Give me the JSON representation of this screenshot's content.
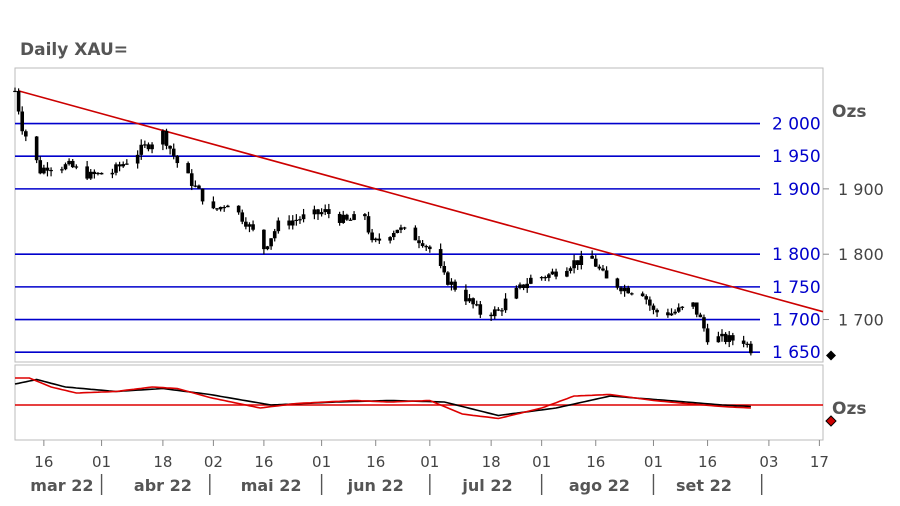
{
  "chart_data": {
    "type": "candlestick",
    "title": "Daily XAU=",
    "unit_label": "Ozs",
    "oscillator_unit_label": "Ozs",
    "colors": {
      "levels": "#0000cc",
      "trendline": "#cc0000",
      "candles": "#000000",
      "osc_fast": "#dd0000",
      "osc_slow": "#000000",
      "frame": "#bbbbbb",
      "axis_text": "#444444"
    },
    "y_range": [
      1635,
      2085
    ],
    "x_range_dates": [
      "2022-03-08",
      "2022-10-18"
    ],
    "horizontal_levels": [
      {
        "value": 2000,
        "label": "2 000"
      },
      {
        "value": 1950,
        "label": "1 950"
      },
      {
        "value": 1900,
        "label": "1 900"
      },
      {
        "value": 1800,
        "label": "1 800"
      },
      {
        "value": 1750,
        "label": "1 750"
      },
      {
        "value": 1700,
        "label": "1 700"
      },
      {
        "value": 1650,
        "label": "1 650"
      }
    ],
    "right_axis_ticks": [
      {
        "value": 1900,
        "label": "1 900"
      },
      {
        "value": 1800,
        "label": "1 800"
      },
      {
        "value": 1700,
        "label": "1 700"
      }
    ],
    "last_value_marker": 1645,
    "trendline": {
      "start": [
        "2022-03-09",
        2050
      ],
      "end": [
        "2022-10-18",
        1712
      ]
    },
    "price_keypoints": [
      [
        "2022-03-08",
        2050
      ],
      [
        "2022-03-10",
        1995
      ],
      [
        "2022-03-15",
        1928
      ],
      [
        "2022-03-17",
        1935
      ],
      [
        "2022-03-23",
        1935
      ],
      [
        "2022-03-29",
        1920
      ],
      [
        "2022-04-04",
        1926
      ],
      [
        "2022-04-12",
        1960
      ],
      [
        "2022-04-18",
        1985
      ],
      [
        "2022-04-22",
        1940
      ],
      [
        "2022-04-28",
        1895
      ],
      [
        "2022-05-02",
        1865
      ],
      [
        "2022-05-06",
        1880
      ],
      [
        "2022-05-11",
        1850
      ],
      [
        "2022-05-16",
        1810
      ],
      [
        "2022-05-20",
        1845
      ],
      [
        "2022-05-26",
        1855
      ],
      [
        "2022-06-02",
        1865
      ],
      [
        "2022-06-08",
        1850
      ],
      [
        "2022-06-13",
        1860
      ],
      [
        "2022-06-15",
        1815
      ],
      [
        "2022-06-22",
        1840
      ],
      [
        "2022-06-29",
        1820
      ],
      [
        "2022-07-01",
        1808
      ],
      [
        "2022-07-05",
        1765
      ],
      [
        "2022-07-12",
        1728
      ],
      [
        "2022-07-15",
        1710
      ],
      [
        "2022-07-20",
        1712
      ],
      [
        "2022-07-22",
        1728
      ],
      [
        "2022-07-29",
        1762
      ],
      [
        "2022-08-03",
        1768
      ],
      [
        "2022-08-10",
        1788
      ],
      [
        "2022-08-15",
        1792
      ],
      [
        "2022-08-19",
        1760
      ],
      [
        "2022-08-24",
        1748
      ],
      [
        "2022-08-29",
        1742
      ],
      [
        "2022-09-01",
        1712
      ],
      [
        "2022-09-06",
        1710
      ],
      [
        "2022-09-12",
        1722
      ],
      [
        "2022-09-14",
        1700
      ],
      [
        "2022-09-16",
        1673
      ],
      [
        "2022-09-21",
        1670
      ],
      [
        "2022-09-26",
        1668
      ],
      [
        "2022-09-28",
        1655
      ]
    ],
    "oscillator": {
      "level": "mid",
      "fast_keypoints": [
        [
          "2022-03-08",
          0.9
        ],
        [
          "2022-03-12",
          0.9
        ],
        [
          "2022-03-18",
          0.6
        ],
        [
          "2022-03-25",
          0.4
        ],
        [
          "2022-04-05",
          0.45
        ],
        [
          "2022-04-15",
          0.6
        ],
        [
          "2022-04-22",
          0.55
        ],
        [
          "2022-05-01",
          0.25
        ],
        [
          "2022-05-15",
          -0.1
        ],
        [
          "2022-05-25",
          0.05
        ],
        [
          "2022-06-10",
          0.15
        ],
        [
          "2022-06-20",
          0.1
        ],
        [
          "2022-07-01",
          0.15
        ],
        [
          "2022-07-10",
          -0.3
        ],
        [
          "2022-07-20",
          -0.45
        ],
        [
          "2022-08-01",
          -0.1
        ],
        [
          "2022-08-10",
          0.3
        ],
        [
          "2022-08-20",
          0.35
        ],
        [
          "2022-09-01",
          0.15
        ],
        [
          "2022-09-10",
          0.05
        ],
        [
          "2022-09-20",
          -0.05
        ],
        [
          "2022-09-28",
          -0.1
        ]
      ],
      "slow_keypoints": [
        [
          "2022-03-08",
          0.7
        ],
        [
          "2022-03-14",
          0.85
        ],
        [
          "2022-03-22",
          0.6
        ],
        [
          "2022-04-05",
          0.45
        ],
        [
          "2022-04-18",
          0.55
        ],
        [
          "2022-05-01",
          0.35
        ],
        [
          "2022-05-18",
          0.0
        ],
        [
          "2022-06-05",
          0.1
        ],
        [
          "2022-06-20",
          0.15
        ],
        [
          "2022-07-05",
          0.1
        ],
        [
          "2022-07-20",
          -0.35
        ],
        [
          "2022-08-05",
          -0.1
        ],
        [
          "2022-08-20",
          0.3
        ],
        [
          "2022-09-05",
          0.15
        ],
        [
          "2022-09-20",
          0.0
        ],
        [
          "2022-09-28",
          -0.05
        ]
      ]
    },
    "x_ticks": [
      {
        "date": "2022-03-16",
        "label": "16"
      },
      {
        "date": "2022-04-01",
        "label": "01"
      },
      {
        "date": "2022-04-18",
        "label": "18"
      },
      {
        "date": "2022-05-02",
        "label": "02"
      },
      {
        "date": "2022-05-16",
        "label": "16"
      },
      {
        "date": "2022-06-01",
        "label": "01"
      },
      {
        "date": "2022-06-16",
        "label": "16"
      },
      {
        "date": "2022-07-01",
        "label": "01"
      },
      {
        "date": "2022-07-18",
        "label": "18"
      },
      {
        "date": "2022-08-01",
        "label": "01"
      },
      {
        "date": "2022-08-16",
        "label": "16"
      },
      {
        "date": "2022-09-01",
        "label": "01"
      },
      {
        "date": "2022-09-16",
        "label": "16"
      },
      {
        "date": "2022-10-03",
        "label": "03"
      },
      {
        "date": "2022-10-17",
        "label": "17"
      }
    ],
    "months": [
      {
        "label": "mar 22",
        "date": "2022-03-21"
      },
      {
        "label": "abr 22",
        "date": "2022-04-18"
      },
      {
        "label": "mai 22",
        "date": "2022-05-18"
      },
      {
        "label": "jun 22",
        "date": "2022-06-16"
      },
      {
        "label": "jul 22",
        "date": "2022-07-17"
      },
      {
        "label": "ago 22",
        "date": "2022-08-17"
      },
      {
        "label": "set 22",
        "date": "2022-09-15"
      }
    ],
    "month_separators": [
      "2022-04-01",
      "2022-05-01",
      "2022-06-01",
      "2022-07-01",
      "2022-08-01",
      "2022-09-01",
      "2022-10-01"
    ]
  }
}
